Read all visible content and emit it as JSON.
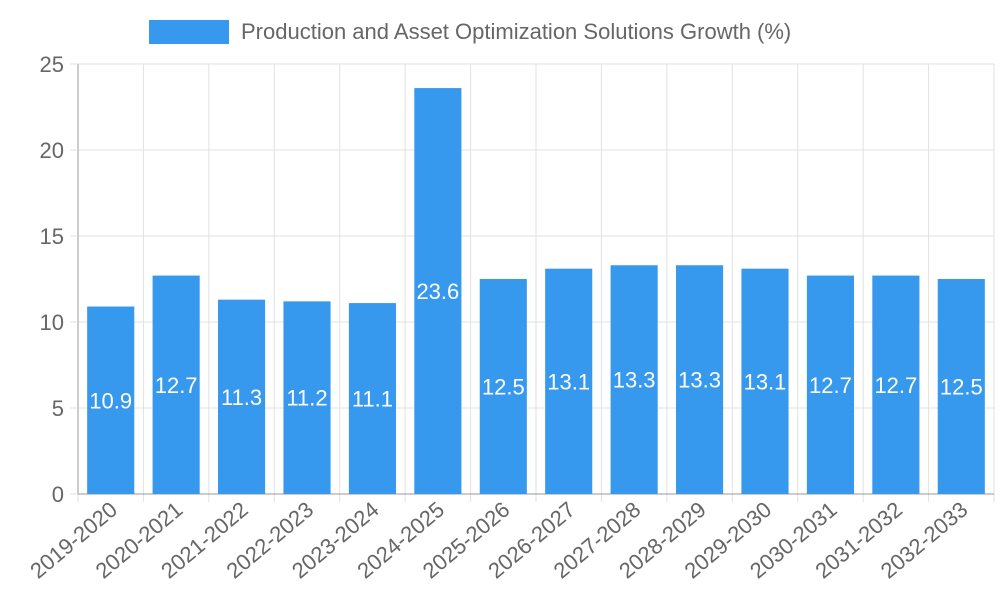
{
  "chart_data": {
    "type": "bar",
    "title": "",
    "xlabel": "",
    "ylabel": "",
    "categories": [
      "2019-2020",
      "2020-2021",
      "2021-2022",
      "2022-2023",
      "2023-2024",
      "2024-2025",
      "2025-2026",
      "2026-2027",
      "2027-2028",
      "2028-2029",
      "2029-2030",
      "2030-2031",
      "2031-2032",
      "2032-2033"
    ],
    "series": [
      {
        "name": "Production and Asset Optimization Solutions Growth (%)",
        "values": [
          10.9,
          12.7,
          11.3,
          11.2,
          11.1,
          23.6,
          12.5,
          13.1,
          13.3,
          13.3,
          13.1,
          12.7,
          12.7,
          12.5
        ],
        "color": "#3799ee"
      }
    ],
    "ylim": [
      0,
      25
    ],
    "yticks": [
      0,
      5,
      10,
      15,
      20,
      25
    ],
    "grid": true,
    "legend_position": "top-center",
    "data_labels": true,
    "data_label_color": "#ffffff"
  }
}
